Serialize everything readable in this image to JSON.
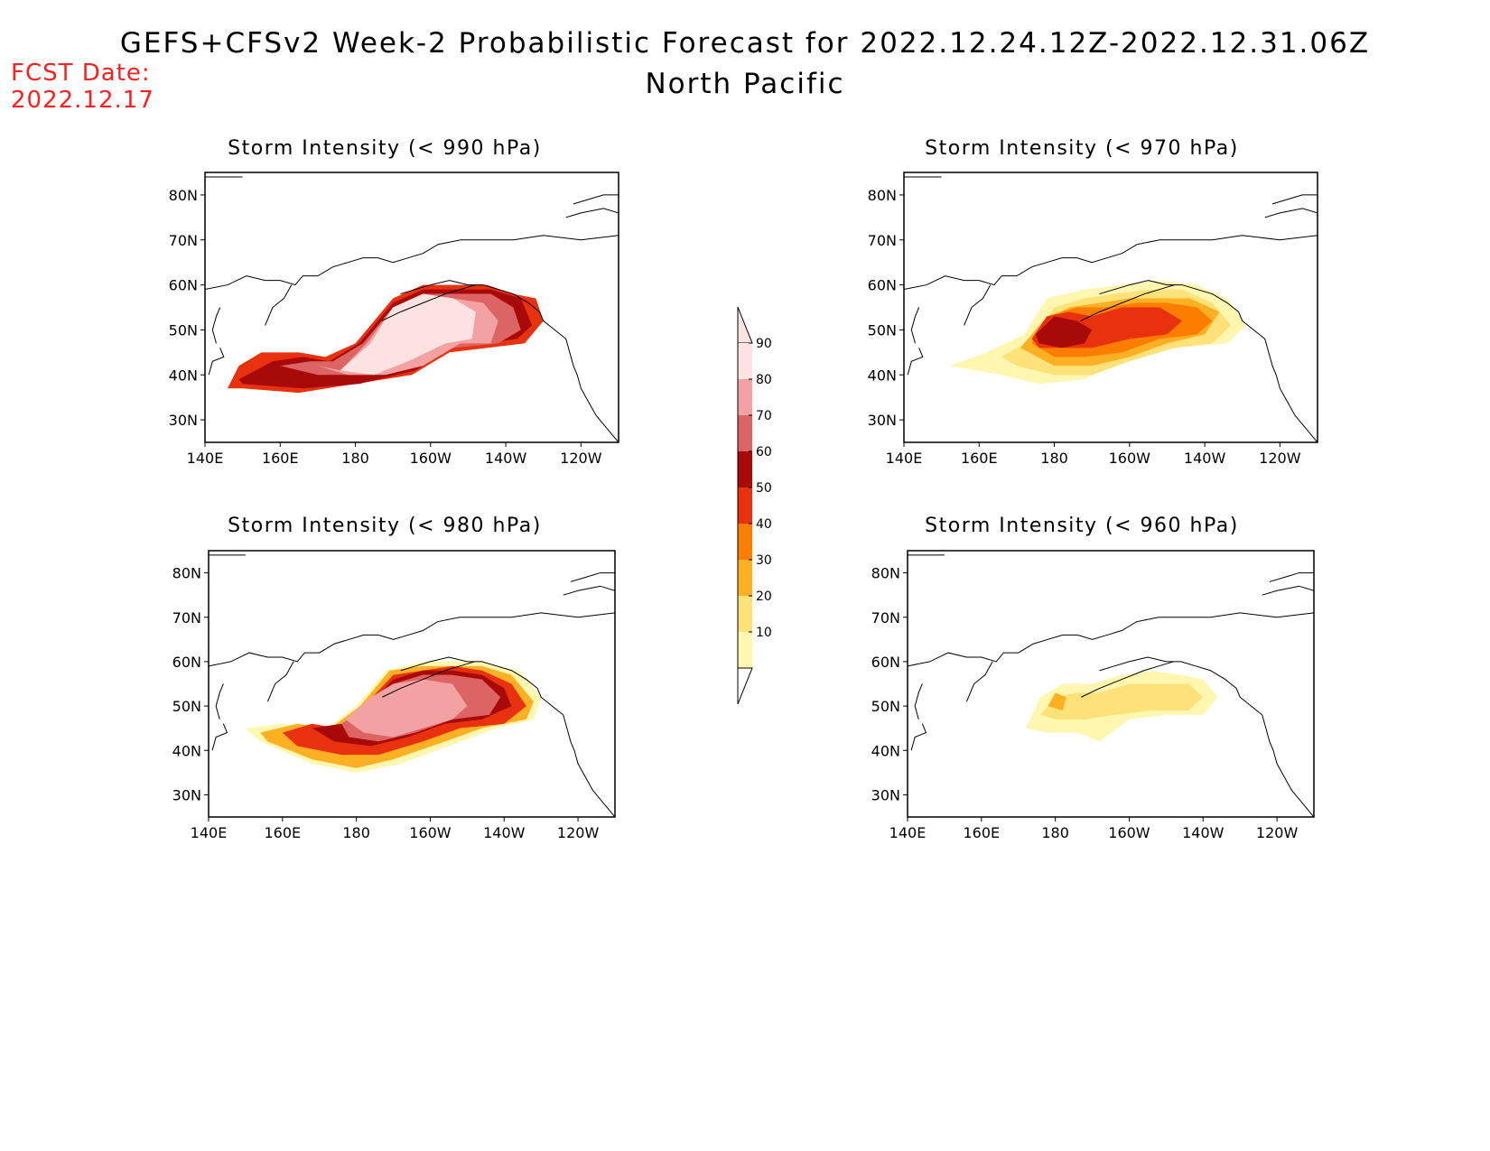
{
  "header": {
    "title": "GEFS+CFSv2 Week-2 Probabilistic Forecast for 2022.12.24.12Z-2022.12.31.06Z",
    "subtitle": "North Pacific",
    "fcst_label": "FCST Date:",
    "fcst_value": "2022.12.17"
  },
  "colors": {
    "c10": "#fff7b0",
    "c20": "#fde27a",
    "c30": "#fdb023",
    "c40": "#fc7d00",
    "c50": "#e8310e",
    "c60": "#a80a0a",
    "c70": "#dc6464",
    "c80": "#f2a2a2",
    "c90": "#fde2e2"
  },
  "colorbar": {
    "ticks": [
      "10",
      "20",
      "30",
      "40",
      "50",
      "60",
      "70",
      "80",
      "90"
    ]
  },
  "axes": {
    "lat_ticks": [
      "30N",
      "40N",
      "50N",
      "60N",
      "70N",
      "80N"
    ],
    "lon_ticks": [
      "140E",
      "160E",
      "180",
      "160W",
      "140W",
      "120W"
    ]
  },
  "chart_data": [
    {
      "type": "heatmap",
      "title": "Storm Intensity (< 990 hPa)",
      "lon_range": [
        140,
        250
      ],
      "lat_range": [
        25,
        85
      ],
      "regions": [
        {
          "level": 50,
          "lon": [
            146,
            149,
            155,
            165,
            172,
            180,
            190,
            198,
            205,
            215,
            222,
            228,
            230,
            225,
            205,
            195,
            180,
            165,
            150,
            146
          ],
          "lat": [
            37,
            42,
            45,
            45,
            44,
            47,
            57,
            60,
            60,
            60,
            58,
            57,
            52,
            47,
            45,
            40,
            38,
            36,
            37,
            37
          ]
        },
        {
          "level": 60,
          "lon": [
            149,
            158,
            166,
            173,
            181,
            190,
            198,
            206,
            216,
            224,
            227,
            223,
            206,
            196,
            181,
            166,
            150,
            149
          ],
          "lat": [
            39,
            43,
            44,
            43,
            47,
            56,
            59,
            59,
            59,
            57,
            51,
            48,
            46,
            41,
            38,
            37,
            38,
            39
          ]
        },
        {
          "level": 70,
          "lon": [
            160,
            168,
            174,
            182,
            190,
            198,
            206,
            216,
            222,
            224,
            218,
            206,
            196,
            184,
            170,
            160
          ],
          "lat": [
            42,
            43,
            43,
            47,
            55,
            58,
            58,
            58,
            55,
            50,
            47,
            46,
            42,
            40,
            40,
            42
          ]
        },
        {
          "level": 80,
          "lon": [
            170,
            176,
            183,
            190,
            198,
            206,
            214,
            218,
            216,
            208,
            198,
            188,
            178,
            170
          ],
          "lat": [
            42,
            41,
            47,
            55,
            58,
            57,
            56,
            52,
            47,
            47,
            42,
            40,
            40,
            42
          ]
        },
        {
          "level": 90,
          "lon": [
            176,
            184,
            190,
            198,
            206,
            212,
            211,
            204,
            194,
            185,
            176
          ],
          "lat": [
            41,
            47,
            55,
            58,
            57,
            54,
            48,
            47,
            43,
            40,
            41
          ]
        }
      ]
    },
    {
      "type": "heatmap",
      "title": "Storm Intensity (< 970 hPa)",
      "lon_range": [
        140,
        250
      ],
      "lat_range": [
        25,
        85
      ],
      "regions": [
        {
          "level": 10,
          "lon": [
            152,
            162,
            172,
            178,
            188,
            198,
            208,
            218,
            226,
            231,
            226,
            212,
            198,
            188,
            176,
            166,
            152
          ],
          "lat": [
            42,
            45,
            49,
            57,
            59,
            60,
            61,
            60,
            57,
            51,
            47,
            46,
            43,
            39,
            38,
            40,
            42
          ]
        },
        {
          "level": 20,
          "lon": [
            166,
            174,
            180,
            188,
            196,
            206,
            214,
            222,
            227,
            222,
            212,
            200,
            190,
            180,
            170,
            166
          ],
          "lat": [
            44,
            48,
            55,
            57,
            58,
            59,
            59,
            56,
            51,
            47,
            46,
            43,
            40,
            40,
            42,
            44
          ]
        },
        {
          "level": 30,
          "lon": [
            171,
            177,
            184,
            192,
            200,
            208,
            216,
            224,
            220,
            210,
            200,
            190,
            180,
            171
          ],
          "lat": [
            46,
            52,
            55,
            56,
            57,
            57,
            57,
            54,
            49,
            47,
            44,
            42,
            42,
            46
          ]
        },
        {
          "level": 40,
          "lon": [
            174,
            178,
            186,
            194,
            202,
            210,
            218,
            222,
            218,
            208,
            198,
            188,
            180,
            174
          ],
          "lat": [
            47,
            53,
            55,
            55,
            56,
            56,
            55,
            52,
            49,
            48,
            45,
            44,
            44,
            47
          ]
        },
        {
          "level": 50,
          "lon": [
            174,
            178,
            184,
            190,
            198,
            208,
            214,
            210,
            200,
            190,
            184,
            176,
            174
          ],
          "lat": [
            48,
            53,
            54,
            53,
            55,
            55,
            52,
            49,
            48,
            46,
            46,
            46,
            48
          ]
        },
        {
          "level": 60,
          "lon": [
            175,
            180,
            186,
            190,
            188,
            182,
            176,
            175
          ],
          "lat": [
            49,
            53,
            52,
            50,
            47,
            46,
            47,
            49
          ]
        }
      ]
    },
    {
      "type": "heatmap",
      "title": "Storm Intensity (< 980 hPa)",
      "lon_range": [
        140,
        250
      ],
      "lat_range": [
        25,
        85
      ],
      "regions": [
        {
          "level": 10,
          "lon": [
            150,
            160,
            172,
            180,
            188,
            198,
            206,
            214,
            224,
            230,
            228,
            218,
            205,
            192,
            180,
            168,
            154,
            150
          ],
          "lat": [
            45,
            46,
            45,
            50,
            58,
            60,
            60,
            60,
            58,
            52,
            47,
            45,
            41,
            37,
            35,
            37,
            42,
            45
          ]
        },
        {
          "level": 30,
          "lon": [
            154,
            164,
            173,
            181,
            189,
            198,
            206,
            214,
            222,
            228,
            226,
            214,
            204,
            190,
            180,
            168,
            156,
            154
          ],
          "lat": [
            44,
            46,
            45,
            50,
            58,
            59,
            59,
            59,
            57,
            51,
            47,
            45,
            42,
            38,
            36,
            38,
            42,
            44
          ]
        },
        {
          "level": 50,
          "lon": [
            160,
            168,
            175,
            182,
            190,
            198,
            206,
            214,
            222,
            226,
            220,
            208,
            198,
            186,
            176,
            164,
            160
          ],
          "lat": [
            44,
            46,
            45,
            50,
            57,
            58,
            59,
            58,
            55,
            50,
            46,
            45,
            42,
            39,
            39,
            41,
            44
          ]
        },
        {
          "level": 60,
          "lon": [
            168,
            176,
            183,
            190,
            198,
            206,
            214,
            220,
            222,
            214,
            204,
            194,
            184,
            174,
            168
          ],
          "lat": [
            45,
            46,
            50,
            56,
            58,
            58,
            57,
            54,
            50,
            47,
            46,
            43,
            41,
            42,
            45
          ]
        },
        {
          "level": 70,
          "lon": [
            176,
            184,
            190,
            198,
            206,
            214,
            219,
            216,
            206,
            196,
            186,
            178,
            176
          ],
          "lat": [
            46,
            51,
            55,
            57,
            57,
            56,
            52,
            48,
            47,
            44,
            42,
            43,
            46
          ]
        },
        {
          "level": 80,
          "lon": [
            177,
            184,
            190,
            198,
            206,
            210,
            206,
            198,
            190,
            182,
            177
          ],
          "lat": [
            47,
            52,
            55,
            56,
            55,
            50,
            47,
            45,
            43,
            44,
            47
          ]
        }
      ]
    },
    {
      "type": "heatmap",
      "title": "Storm Intensity (< 960 hPa)",
      "lon_range": [
        140,
        250
      ],
      "lat_range": [
        25,
        85
      ],
      "regions": [
        {
          "level": 10,
          "lon": [
            172,
            176,
            182,
            190,
            198,
            206,
            214,
            220,
            224,
            220,
            210,
            200,
            192,
            186,
            178,
            172
          ],
          "lat": [
            45,
            52,
            55,
            55,
            57,
            58,
            57,
            56,
            52,
            48,
            48,
            47,
            42,
            44,
            44,
            45
          ]
        },
        {
          "level": 20,
          "lon": [
            176,
            180,
            186,
            192,
            200,
            208,
            216,
            220,
            216,
            206,
            196,
            188,
            180,
            176
          ],
          "lat": [
            48,
            52,
            53,
            53,
            55,
            55,
            55,
            52,
            49,
            49,
            48,
            47,
            47,
            48
          ]
        },
        {
          "level": 30,
          "lon": [
            178,
            180,
            183,
            182,
            178
          ],
          "lat": [
            50,
            53,
            52,
            49,
            50
          ]
        }
      ]
    }
  ]
}
